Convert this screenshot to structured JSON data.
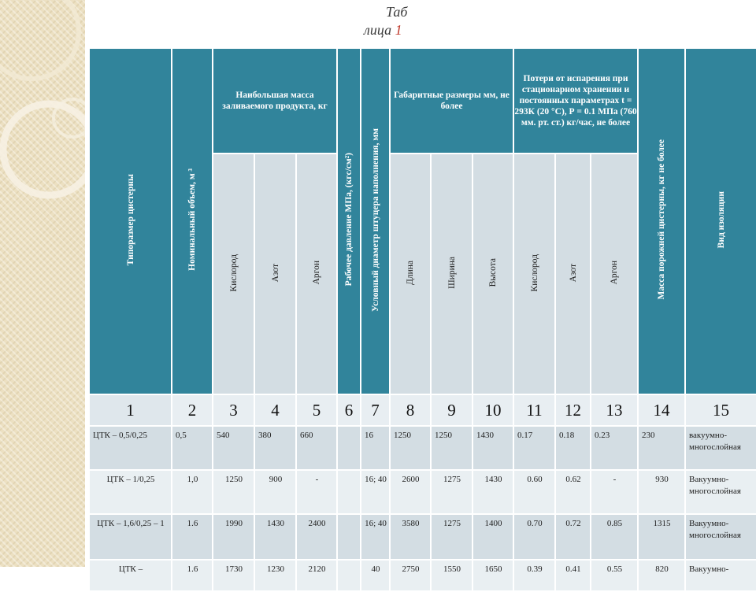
{
  "caption": {
    "part1": "Таб",
    "part2": "лица ",
    "number": "1"
  },
  "headers": {
    "col1": "Типоразмер цистерны",
    "col2": "Номинальный объем, м ³",
    "group_mass": "Наибольшая масса заливаемого продукта, кг",
    "mass_sub": [
      "Кислород",
      "Азот",
      "Аргон"
    ],
    "col6": "Рабочее давление МПа, (кгс/см²)",
    "col7": "Условный диаметр штуцера наполнения, мм",
    "group_dims": "Габаритные размеры мм, не более",
    "dims_sub": [
      "Длина",
      "Ширина",
      "Высота"
    ],
    "group_loss": "Потери от испарения при стационарном хранении и постоянных параметрах t = 293К (20 °С), Р = 0.1 МПа (760 мм. рт. ст.) кг/час, не более",
    "loss_sub": [
      "Кислород",
      "Азот",
      "Аргон"
    ],
    "col14": "Масса порожней цистерны, кг не более",
    "col15": "Вид изоляции"
  },
  "column_numbers": [
    "1",
    "2",
    "3",
    "4",
    "5",
    "6",
    "7",
    "8",
    "9",
    "10",
    "11",
    "12",
    "13",
    "14",
    "15"
  ],
  "rows": [
    {
      "c1": "ЦТК – 0,5/0,25",
      "c2": "0,5",
      "c3": "540",
      "c4": "380",
      "c5": "660",
      "c6": "",
      "c7": "16",
      "c8": "1250",
      "c9": "1250",
      "c10": "1430",
      "c11": "0.17",
      "c12": "0.18",
      "c13": "0.23",
      "c14": "230",
      "c15": "вакуумно-многослойная"
    },
    {
      "c1": "ЦТК – 1/0,25",
      "c2": "1,0",
      "c3": "1250",
      "c4": "900",
      "c5": "-",
      "c6": "",
      "c7": "16; 40",
      "c8": "2600",
      "c9": "1275",
      "c10": "1430",
      "c11": "0.60",
      "c12": "0.62",
      "c13": "-",
      "c14": "930",
      "c15": "Вакуумно-многослойная"
    },
    {
      "c1": "ЦТК – 1,6/0,25 – 1",
      "c2": "1.6",
      "c3": "1990",
      "c4": "1430",
      "c5": "2400",
      "c6": "",
      "c7": "16; 40",
      "c8": "3580",
      "c9": "1275",
      "c10": "1400",
      "c11": "0.70",
      "c12": "0.72",
      "c13": "0.85",
      "c14": "1315",
      "c15": "Вакуумно-многослойная"
    },
    {
      "c1": "ЦТК –",
      "c2": "1.6",
      "c3": "1730",
      "c4": "1230",
      "c5": "2120",
      "c6": "",
      "c7": "40",
      "c8": "2750",
      "c9": "1550",
      "c10": "1650",
      "c11": "0.39",
      "c12": "0.41",
      "c13": "0.55",
      "c14": "820",
      "c15": "Вакуумно-"
    }
  ]
}
